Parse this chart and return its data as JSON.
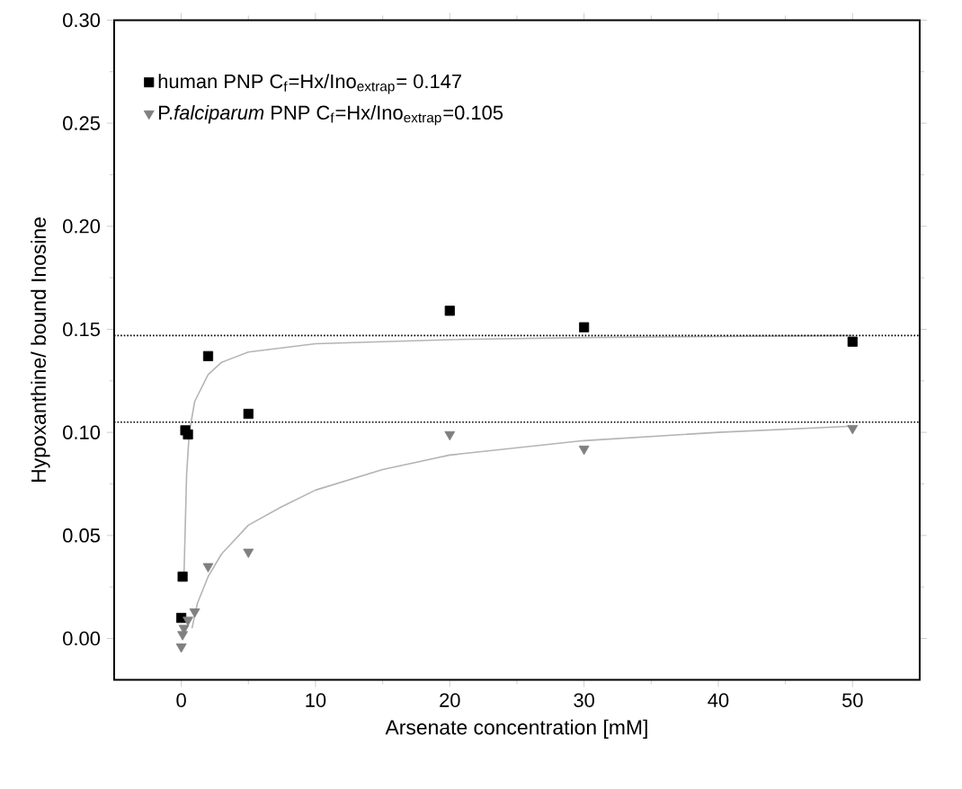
{
  "chart_data": {
    "type": "scatter",
    "xlabel": "Arsenate concentration [mM]",
    "ylabel": "Hypoxanthine/ bound Inosine",
    "xlim": [
      -5,
      55
    ],
    "ylim": [
      -0.02,
      0.3
    ],
    "xticks": [
      0,
      10,
      20,
      30,
      40,
      50
    ],
    "yticks": [
      {
        "value": 0,
        "label": "0.00"
      },
      {
        "value": 0.05,
        "label": "0.05"
      },
      {
        "value": 0.1,
        "label": "0.10"
      },
      {
        "value": 0.15,
        "label": "0.15"
      },
      {
        "value": 0.2,
        "label": "0.20"
      },
      {
        "value": 0.25,
        "label": "0.25"
      },
      {
        "value": 0.3,
        "label": "0.30"
      }
    ],
    "legend": "top left",
    "series": [
      {
        "name": "human PNP  C$_{f}$=Hx/Ino$_{extrap}$= 0.147",
        "color": "#000000",
        "marker": "square",
        "x": [
          0,
          0.1,
          0.3,
          0.5,
          2,
          5,
          20,
          30,
          50
        ],
        "values": [
          0.01,
          0.03,
          0.101,
          0.099,
          0.137,
          0.109,
          0.159,
          0.151,
          0.144
        ]
      },
      {
        "name": "P.*falciparum* PNP C$_{f}$=Hx/Ino$_{extrap}$=0.105",
        "color": "#808080",
        "marker": "triangle",
        "x": [
          0,
          0.1,
          0.2,
          0.5,
          1,
          2,
          5,
          20,
          30,
          50
        ],
        "values": [
          -0.004,
          0.002,
          0.005,
          0.009,
          0.013,
          0.035,
          0.042,
          0.099,
          0.092,
          0.102
        ]
      },
      {
        "type": "line",
        "color": "#b4b4b4",
        "marker": "none",
        "x": [
          0.2,
          0.4,
          0.6,
          1,
          2,
          3,
          5,
          10,
          20,
          30,
          50
        ],
        "values": [
          0.03,
          0.08,
          0.1,
          0.115,
          0.128,
          0.134,
          0.139,
          0.143,
          0.145,
          0.146,
          0.147
        ]
      },
      {
        "type": "line",
        "color": "#b4b4b4",
        "marker": "none",
        "x": [
          0.8,
          1.2,
          2,
          3,
          5,
          7.5,
          10,
          15,
          20,
          30,
          40,
          50
        ],
        "values": [
          0.005,
          0.017,
          0.03,
          0.041,
          0.055,
          0.064,
          0.072,
          0.082,
          0.089,
          0.096,
          0.1,
          0.103
        ]
      }
    ],
    "ref_lines": [
      {
        "axis": "y",
        "value": 0.147,
        "color": "#000000",
        "line_style": "dotted"
      },
      {
        "axis": "y",
        "value": 0.105,
        "color": "#000000",
        "line_style": "dotted"
      }
    ]
  }
}
